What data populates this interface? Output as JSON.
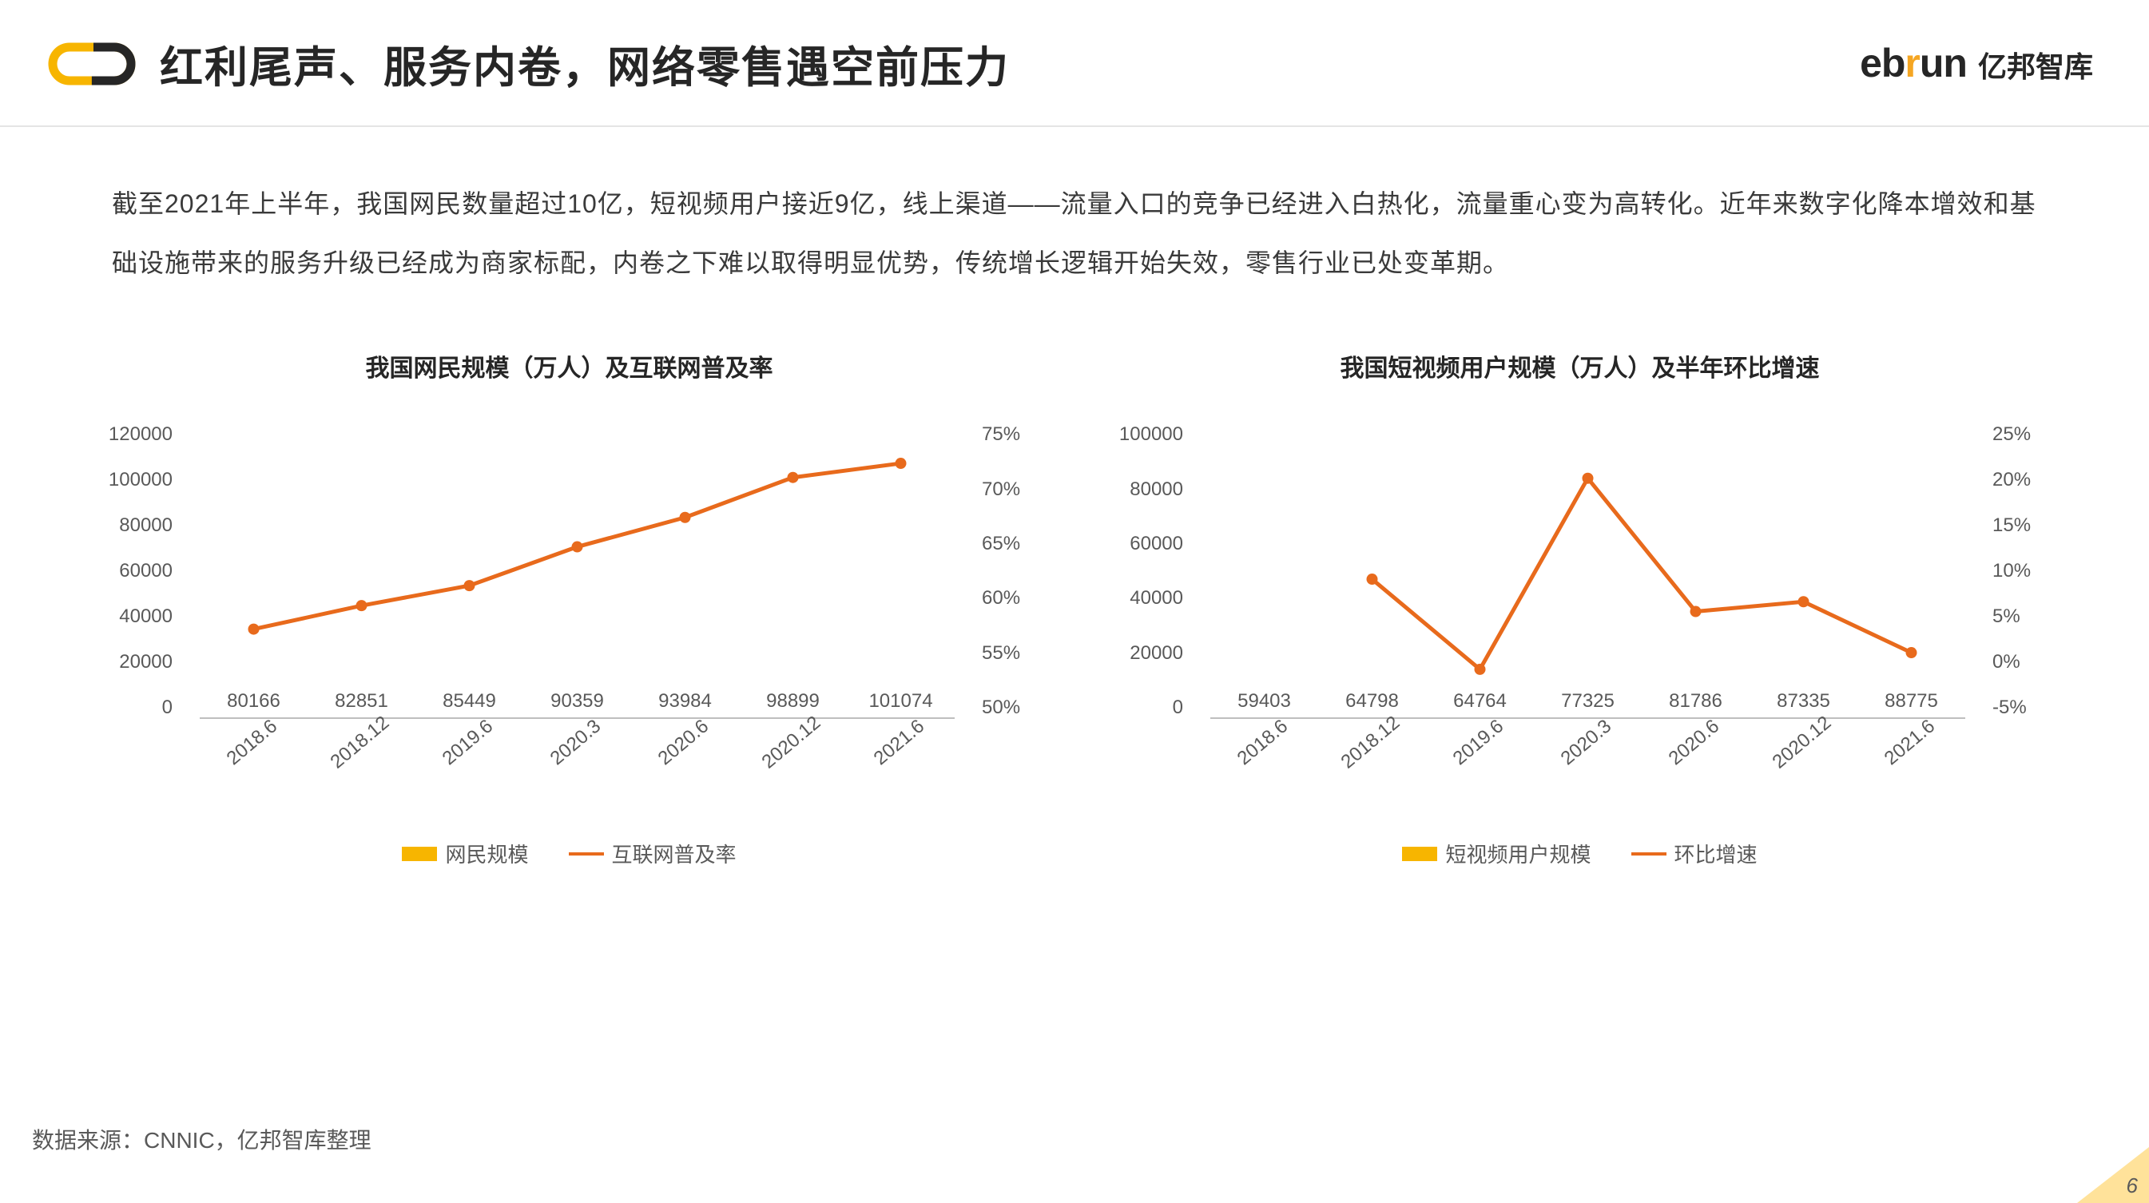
{
  "colors": {
    "bar": "#f7b500",
    "line": "#e86a1c",
    "text": "#262626",
    "axis_text": "#595959",
    "divider": "#e5e5e5",
    "corner": "#ffe29a",
    "bg": "#ffffff"
  },
  "header": {
    "title": "红利尾声、服务内卷，网络零售遇空前压力",
    "brand_en_prefix": "eb",
    "brand_en_accent": "r",
    "brand_en_suffix": "un",
    "brand_zh": "亿邦智库"
  },
  "body": "截至2021年上半年，我国网民数量超过10亿，短视频用户接近9亿，线上渠道——流量入口的竞争已经进入白热化，流量重心变为高转化。近年来数字化降本增效和基础设施带来的服务升级已经成为商家标配，内卷之下难以取得明显优势，传统增长逻辑开始失效，零售行业已处变革期。",
  "chart_left": {
    "title": "我国网民规模（万人）及互联网普及率",
    "type": "bar+line",
    "categories": [
      "2018.6",
      "2018.12",
      "2019.6",
      "2020.3",
      "2020.6",
      "2020.12",
      "2021.6"
    ],
    "bar_values": [
      80166,
      82851,
      85449,
      90359,
      93984,
      98899,
      101074
    ],
    "line_values_pct": [
      57.5,
      59.5,
      61.2,
      64.5,
      67.0,
      70.4,
      71.6
    ],
    "y_left": {
      "min": 0,
      "max": 120000,
      "step": 20000
    },
    "y_right": {
      "min": 50,
      "max": 75,
      "step": 5,
      "suffix": "%"
    },
    "legend_bar": "网民规模",
    "legend_line": "互联网普及率",
    "label_fontsize": 24,
    "title_fontsize": 30
  },
  "chart_right": {
    "title": "我国短视频用户规模（万人）及半年环比增速",
    "type": "bar+line",
    "categories": [
      "2018.6",
      "2018.12",
      "2019.6",
      "2020.3",
      "2020.6",
      "2020.12",
      "2021.6"
    ],
    "bar_values": [
      59403,
      64798,
      64764,
      77325,
      81786,
      87335,
      88775
    ],
    "line_values_pct": [
      null,
      9.1,
      -0.1,
      19.4,
      5.8,
      6.8,
      1.6
    ],
    "y_left": {
      "min": 0,
      "max": 100000,
      "step": 20000
    },
    "y_right": {
      "min": -5,
      "max": 25,
      "step": 5,
      "suffix": "%"
    },
    "legend_bar": "短视频用户规模",
    "legend_line": "环比增速",
    "label_fontsize": 24,
    "title_fontsize": 30
  },
  "source": "数据来源：CNNIC，亿邦智库整理",
  "page_number": "6"
}
